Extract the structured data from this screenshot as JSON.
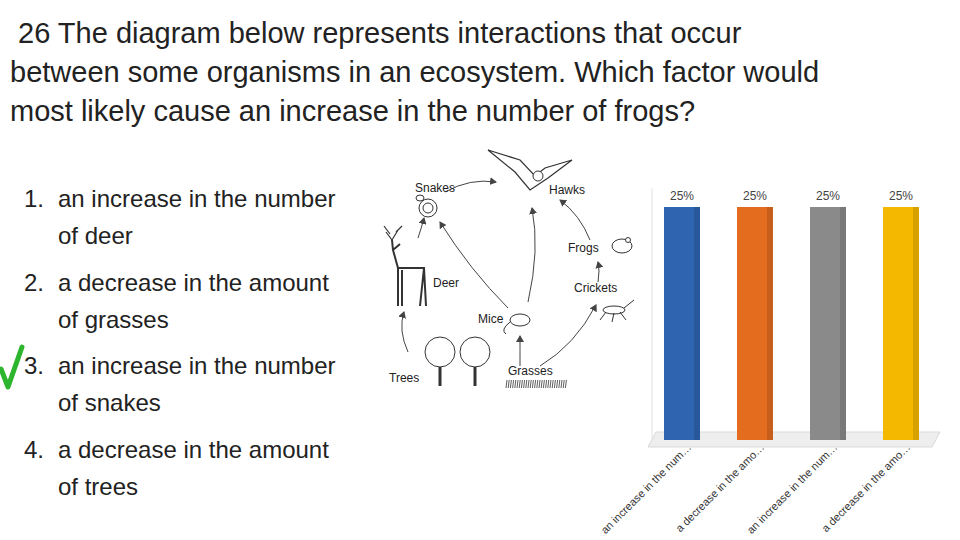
{
  "question_lines": [
    " 26 The diagram below represents interactions that occur",
    "between some organisms in an ecosystem. Which factor would",
    "most likely cause an increase in the number of frogs?"
  ],
  "options": [
    {
      "label": "1.",
      "text": "an increase in the number of deer"
    },
    {
      "label": "2.",
      "text": "a decrease in the amount of grasses"
    },
    {
      "label": "3.",
      "text": "an increase in the number of snakes",
      "checked": true
    },
    {
      "label": "4.",
      "text": "a decrease in the amount of trees"
    }
  ],
  "diagram": {
    "nodes": [
      {
        "label": "Snakes"
      },
      {
        "label": "Hawks"
      },
      {
        "label": "Frogs"
      },
      {
        "label": "Crickets"
      },
      {
        "label": "Deer"
      },
      {
        "label": "Mice"
      },
      {
        "label": "Trees"
      },
      {
        "label": "Grasses"
      }
    ]
  },
  "chart_data": {
    "type": "bar",
    "categories": [
      "an increase in the num…",
      "a decrease in the amo…",
      "an increase in the num…",
      "a decrease in the amo…"
    ],
    "values": [
      25,
      25,
      25,
      25
    ],
    "value_labels": [
      "25%",
      "25%",
      "25%",
      "25%"
    ],
    "colors": [
      "#2f64b1",
      "#e46c1f",
      "#8a8a8a",
      "#f5b800"
    ],
    "ylim": [
      0,
      27
    ],
    "data_labels": true,
    "tick_labels": "x",
    "grid": false
  }
}
